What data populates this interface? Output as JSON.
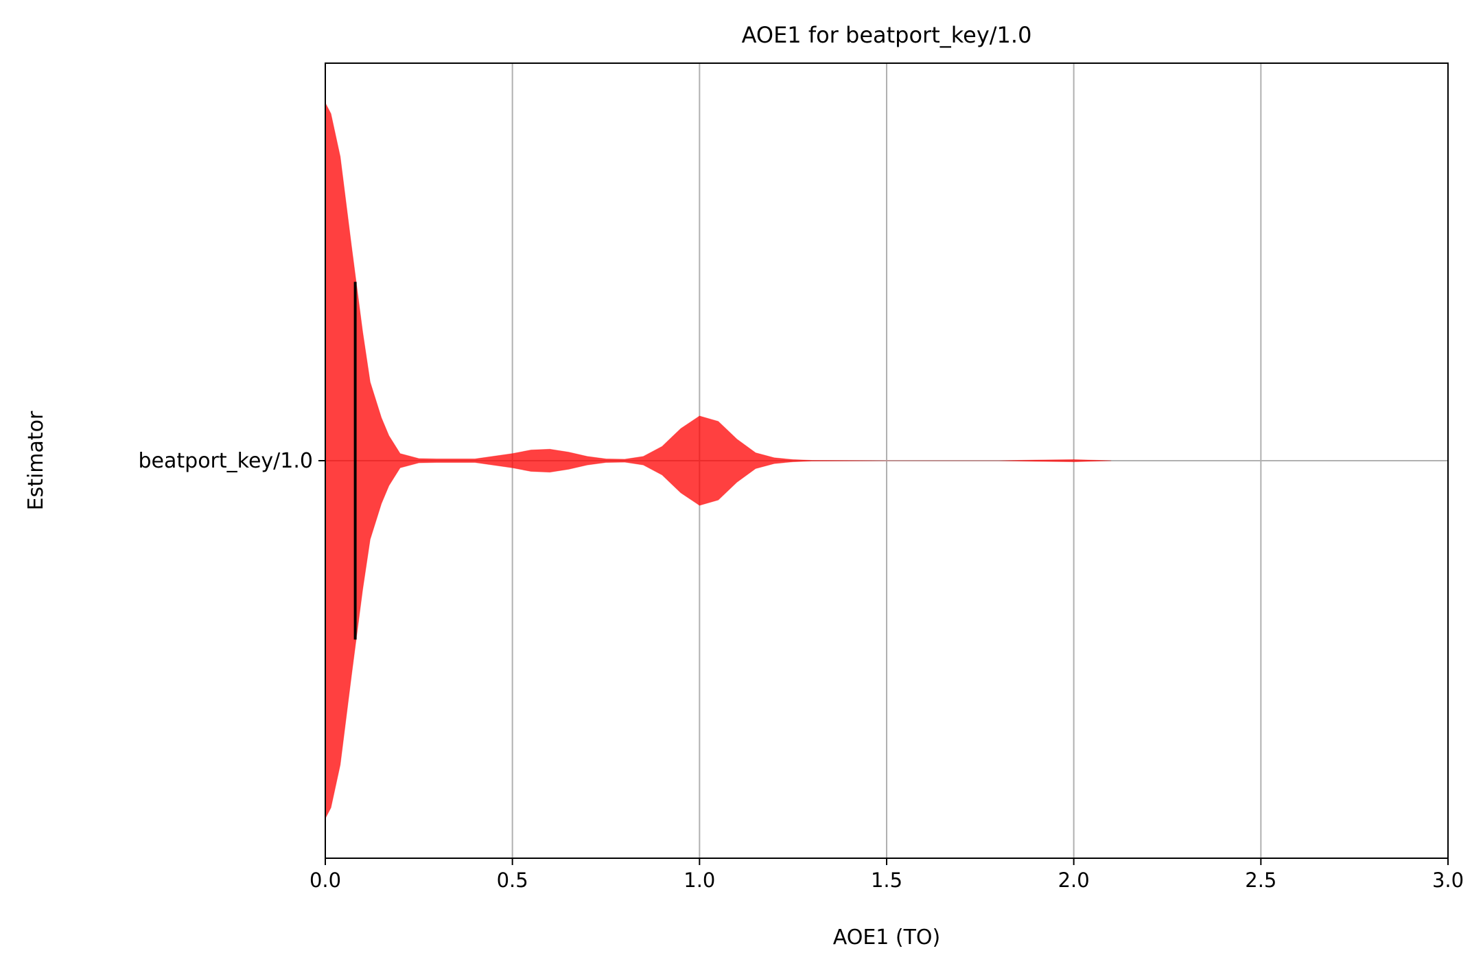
{
  "chart_data": {
    "type": "violin",
    "title": "AOE1 for beatport_key/1.0",
    "xlabel": "AOE1 (TO)",
    "ylabel": "Estimator",
    "xlim": [
      0,
      3.0
    ],
    "x_ticks": [
      0.0,
      0.5,
      1.0,
      1.5,
      2.0,
      2.5,
      3.0
    ],
    "x_tick_labels": [
      "0.0",
      "0.5",
      "1.0",
      "1.5",
      "2.0",
      "2.5",
      "3.0"
    ],
    "categories": [
      "beatport_key/1.0"
    ],
    "grid": true,
    "series": [
      {
        "category": "beatport_key/1.0",
        "color": "#ff0000",
        "alpha": 0.75,
        "mean": 0.08,
        "density_profile": {
          "x": [
            0.0,
            0.015,
            0.04,
            0.07,
            0.1,
            0.12,
            0.15,
            0.17,
            0.2,
            0.25,
            0.3,
            0.4,
            0.5,
            0.55,
            0.6,
            0.65,
            0.7,
            0.75,
            0.8,
            0.85,
            0.9,
            0.95,
            1.0,
            1.05,
            1.1,
            1.15,
            1.2,
            1.25,
            1.3,
            1.5,
            1.8,
            1.9,
            2.0,
            2.1
          ],
          "half_width": [
            1.0,
            0.97,
            0.85,
            0.6,
            0.36,
            0.22,
            0.12,
            0.07,
            0.02,
            0.006,
            0.005,
            0.005,
            0.02,
            0.03,
            0.032,
            0.024,
            0.012,
            0.005,
            0.004,
            0.012,
            0.04,
            0.09,
            0.125,
            0.11,
            0.06,
            0.022,
            0.008,
            0.003,
            0.001,
            0.0,
            0.0,
            0.002,
            0.003,
            0.0
          ]
        }
      }
    ]
  }
}
